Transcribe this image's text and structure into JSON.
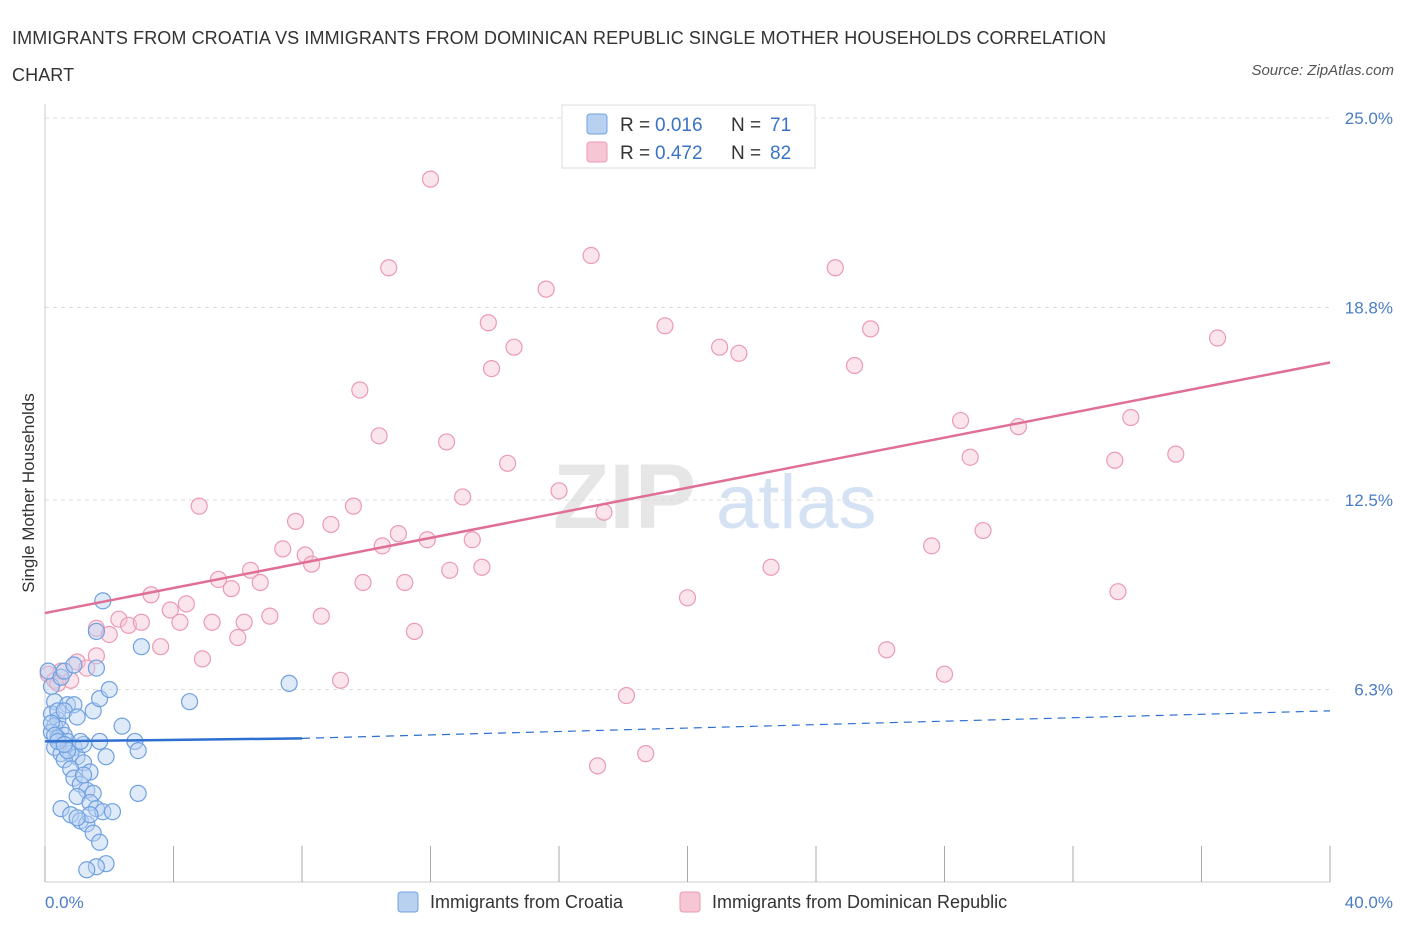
{
  "header": {
    "title": "IMMIGRANTS FROM CROATIA VS IMMIGRANTS FROM DOMINICAN REPUBLIC SINGLE MOTHER HOUSEHOLDS CORRELATION CHART",
    "source": "Source: ZipAtlas.com"
  },
  "watermark": {
    "zip": "ZIP",
    "atlas": "atlas"
  },
  "colors": {
    "croatia": "#6fa0e0",
    "croatia_fill": "#b9d1f1",
    "croatia_line": "#2e6fd0",
    "dominican": "#eb9ab4",
    "dominican_fill": "#f7c6d5",
    "dominican_line": "#e06f96",
    "tick_text": "#4a7cc4",
    "grid": "#dcdcdc"
  },
  "legend_top": {
    "rows": [
      {
        "r_label": "R = ",
        "r_value": "0.016",
        "n_label": "N = ",
        "n_value": "71",
        "series": "croatia"
      },
      {
        "r_label": "R = ",
        "r_value": "0.472",
        "n_label": "N = ",
        "n_value": "82",
        "series": "dominican"
      }
    ]
  },
  "chart_data": {
    "type": "scatter",
    "ylabel": "Single Mother Households",
    "xlabel": "",
    "xlim": [
      0,
      40
    ],
    "ylim": [
      0,
      25
    ],
    "x_tick_labels": [
      "0.0%",
      "40.0%"
    ],
    "y_ticks": [
      6.3,
      12.5,
      18.8,
      25.0
    ],
    "y_tick_labels": [
      "6.3%",
      "12.5%",
      "18.8%",
      "25.0%"
    ],
    "grid": "horizontal dashed",
    "legend_position": "top-center and bottom",
    "series": [
      {
        "name": "Immigrants from Croatia",
        "key": "croatia",
        "trend": {
          "x": [
            0,
            8
          ],
          "y": [
            4.6,
            4.7
          ],
          "dashed_to": [
            40,
            5.6
          ]
        },
        "points": [
          [
            0.1,
            6.9
          ],
          [
            0.2,
            6.4
          ],
          [
            0.3,
            5.9
          ],
          [
            0.2,
            5.5
          ],
          [
            0.4,
            5.3
          ],
          [
            0.3,
            5.1
          ],
          [
            0.5,
            5.0
          ],
          [
            0.2,
            4.9
          ],
          [
            0.6,
            4.8
          ],
          [
            0.4,
            4.7
          ],
          [
            0.7,
            4.6
          ],
          [
            0.3,
            4.4
          ],
          [
            0.9,
            4.4
          ],
          [
            0.5,
            4.2
          ],
          [
            0.8,
            4.2
          ],
          [
            1.0,
            4.1
          ],
          [
            0.6,
            4.0
          ],
          [
            1.2,
            3.9
          ],
          [
            0.8,
            3.7
          ],
          [
            1.4,
            3.6
          ],
          [
            0.9,
            3.4
          ],
          [
            1.1,
            3.2
          ],
          [
            1.3,
            3.0
          ],
          [
            1.5,
            2.9
          ],
          [
            1.0,
            2.8
          ],
          [
            1.4,
            2.6
          ],
          [
            1.6,
            2.4
          ],
          [
            0.5,
            2.4
          ],
          [
            1.8,
            2.3
          ],
          [
            0.8,
            2.2
          ],
          [
            1.1,
            2.0
          ],
          [
            1.3,
            1.9
          ],
          [
            1.5,
            1.6
          ],
          [
            1.7,
            1.3
          ],
          [
            1.9,
            0.6
          ],
          [
            1.6,
            0.5
          ],
          [
            1.3,
            0.4
          ],
          [
            0.7,
            5.8
          ],
          [
            0.9,
            5.8
          ],
          [
            1.5,
            5.6
          ],
          [
            1.7,
            6.0
          ],
          [
            2.0,
            6.3
          ],
          [
            1.6,
            7.0
          ],
          [
            0.5,
            6.7
          ],
          [
            0.6,
            6.9
          ],
          [
            0.9,
            7.1
          ],
          [
            1.6,
            8.2
          ],
          [
            1.8,
            9.2
          ],
          [
            3.0,
            7.7
          ],
          [
            2.4,
            5.1
          ],
          [
            2.8,
            4.6
          ],
          [
            4.5,
            5.9
          ],
          [
            7.6,
            6.5
          ],
          [
            2.9,
            2.9
          ],
          [
            2.9,
            4.3
          ],
          [
            1.2,
            4.5
          ],
          [
            0.4,
            5.6
          ],
          [
            0.2,
            5.2
          ],
          [
            0.6,
            5.6
          ],
          [
            1.0,
            5.4
          ],
          [
            0.3,
            4.8
          ],
          [
            1.9,
            4.1
          ],
          [
            1.7,
            4.6
          ],
          [
            0.7,
            4.3
          ],
          [
            1.2,
            3.5
          ],
          [
            0.4,
            4.6
          ],
          [
            1.1,
            4.6
          ],
          [
            0.6,
            4.5
          ],
          [
            1.4,
            2.2
          ],
          [
            2.1,
            2.3
          ],
          [
            1.0,
            2.1
          ]
        ]
      },
      {
        "name": "Immigrants from Dominican Republic",
        "key": "dominican",
        "trend": {
          "x": [
            0,
            40
          ],
          "y": [
            8.8,
            17.0
          ]
        },
        "points": [
          [
            0.1,
            6.8
          ],
          [
            0.3,
            6.6
          ],
          [
            0.5,
            6.9
          ],
          [
            0.8,
            6.6
          ],
          [
            1.0,
            7.2
          ],
          [
            1.3,
            7.0
          ],
          [
            1.6,
            7.4
          ],
          [
            1.6,
            8.3
          ],
          [
            2.0,
            8.1
          ],
          [
            2.3,
            8.6
          ],
          [
            2.6,
            8.4
          ],
          [
            3.0,
            8.5
          ],
          [
            3.3,
            9.4
          ],
          [
            3.6,
            7.7
          ],
          [
            3.9,
            8.9
          ],
          [
            4.2,
            8.5
          ],
          [
            4.4,
            9.1
          ],
          [
            4.8,
            12.3
          ],
          [
            4.9,
            7.3
          ],
          [
            5.2,
            8.5
          ],
          [
            5.4,
            9.9
          ],
          [
            5.8,
            9.6
          ],
          [
            6.0,
            8.0
          ],
          [
            6.2,
            8.5
          ],
          [
            6.4,
            10.2
          ],
          [
            6.7,
            9.8
          ],
          [
            7.0,
            8.7
          ],
          [
            7.4,
            10.9
          ],
          [
            7.8,
            11.8
          ],
          [
            8.1,
            10.7
          ],
          [
            8.3,
            10.4
          ],
          [
            8.6,
            8.7
          ],
          [
            8.9,
            11.7
          ],
          [
            9.2,
            6.6
          ],
          [
            9.6,
            12.3
          ],
          [
            9.8,
            16.1
          ],
          [
            9.9,
            9.8
          ],
          [
            10.4,
            14.6
          ],
          [
            10.5,
            11.0
          ],
          [
            10.7,
            20.1
          ],
          [
            11.0,
            11.4
          ],
          [
            11.2,
            9.8
          ],
          [
            11.5,
            8.2
          ],
          [
            11.9,
            11.2
          ],
          [
            12.0,
            23.0
          ],
          [
            12.5,
            14.4
          ],
          [
            12.6,
            10.2
          ],
          [
            13.0,
            12.6
          ],
          [
            13.3,
            11.2
          ],
          [
            13.6,
            10.3
          ],
          [
            13.8,
            18.3
          ],
          [
            13.9,
            16.8
          ],
          [
            14.4,
            13.7
          ],
          [
            14.6,
            17.5
          ],
          [
            15.6,
            19.4
          ],
          [
            16.0,
            12.8
          ],
          [
            17.0,
            20.5
          ],
          [
            17.4,
            12.1
          ],
          [
            17.2,
            3.8
          ],
          [
            18.1,
            6.1
          ],
          [
            18.7,
            4.2
          ],
          [
            19.3,
            18.2
          ],
          [
            20.0,
            9.3
          ],
          [
            21.0,
            17.5
          ],
          [
            21.6,
            17.3
          ],
          [
            22.6,
            10.3
          ],
          [
            24.6,
            20.1
          ],
          [
            25.2,
            16.9
          ],
          [
            25.7,
            18.1
          ],
          [
            26.2,
            7.6
          ],
          [
            27.6,
            11.0
          ],
          [
            28.0,
            6.8
          ],
          [
            28.5,
            15.1
          ],
          [
            28.8,
            13.9
          ],
          [
            29.2,
            11.5
          ],
          [
            30.3,
            14.9
          ],
          [
            33.3,
            13.8
          ],
          [
            33.8,
            15.2
          ],
          [
            33.4,
            9.5
          ],
          [
            35.2,
            14.0
          ],
          [
            36.5,
            17.8
          ],
          [
            0.4,
            6.5
          ]
        ]
      }
    ]
  },
  "bottom_legend": {
    "items": [
      {
        "label": "Immigrants from Croatia",
        "series": "croatia"
      },
      {
        "label": "Immigrants from Dominican Republic",
        "series": "dominican"
      }
    ]
  }
}
